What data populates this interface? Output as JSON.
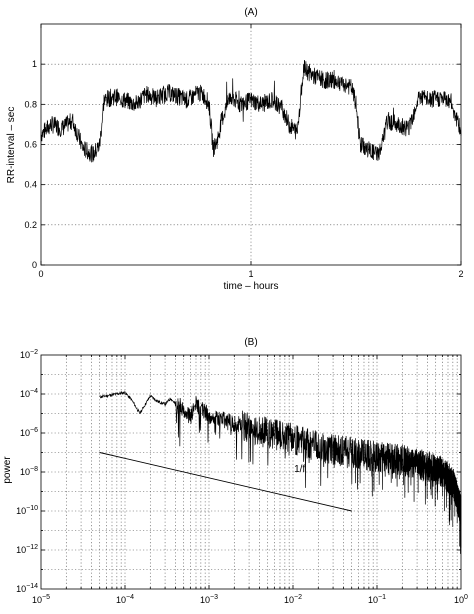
{
  "chart_data": [
    {
      "type": "line",
      "title": "(A)",
      "xlabel": "time – hours",
      "ylabel": "RR-interval – sec",
      "xlim": [
        0,
        2
      ],
      "ylim": [
        0,
        1.2
      ],
      "xticks": [
        0,
        1,
        2
      ],
      "xtick_labels": [
        "0",
        "1",
        "2"
      ],
      "yticks": [
        0,
        0.2,
        0.4,
        0.6,
        0.8,
        1
      ],
      "ytick_labels": [
        "0",
        "0.2",
        "0.4",
        "0.6",
        "0.8",
        "1"
      ],
      "grid": true,
      "series": [
        {
          "x": [
            0.0,
            0.05,
            0.1,
            0.15,
            0.2,
            0.25,
            0.28,
            0.3,
            0.35,
            0.4,
            0.45,
            0.5,
            0.55,
            0.6,
            0.65,
            0.7,
            0.75,
            0.78,
            0.8,
            0.82,
            0.84,
            0.86,
            0.9,
            0.95,
            1.0,
            1.05,
            1.1,
            1.15,
            1.18,
            1.22,
            1.25,
            1.3,
            1.35,
            1.4,
            1.45,
            1.48,
            1.5,
            1.52,
            1.55,
            1.6,
            1.62,
            1.65,
            1.7,
            1.75,
            1.8,
            1.85,
            1.9,
            1.95,
            2.0
          ],
          "values": [
            0.65,
            0.7,
            0.68,
            0.72,
            0.58,
            0.55,
            0.6,
            0.82,
            0.84,
            0.82,
            0.8,
            0.85,
            0.83,
            0.86,
            0.84,
            0.82,
            0.86,
            0.84,
            0.8,
            0.58,
            0.62,
            0.72,
            0.84,
            0.8,
            0.82,
            0.8,
            0.82,
            0.78,
            0.7,
            0.66,
            0.98,
            0.94,
            0.92,
            0.92,
            0.9,
            0.88,
            0.8,
            0.6,
            0.58,
            0.55,
            0.58,
            0.72,
            0.7,
            0.68,
            0.84,
            0.82,
            0.83,
            0.82,
            0.66
          ]
        }
      ]
    },
    {
      "type": "line",
      "title": "(B)",
      "xlabel": "",
      "ylabel": "power",
      "xscale": "log",
      "yscale": "log",
      "xlim": [
        1e-05,
        1
      ],
      "ylim": [
        1e-14,
        0.01
      ],
      "xticks": [
        1e-05,
        0.0001,
        0.001,
        0.01,
        0.1,
        1
      ],
      "xtick_labels": [
        {
          "base": "10",
          "exp": "−5"
        },
        {
          "base": "10",
          "exp": "−4"
        },
        {
          "base": "10",
          "exp": "−3"
        },
        {
          "base": "10",
          "exp": "−2"
        },
        {
          "base": "10",
          "exp": "−1"
        },
        {
          "base": "10",
          "exp": "0"
        }
      ],
      "yticks": [
        1e-14,
        1e-12,
        1e-10,
        1e-08,
        1e-06,
        0.0001,
        0.01
      ],
      "ytick_labels": [
        {
          "base": "10",
          "exp": "−14"
        },
        {
          "base": "10",
          "exp": "−12"
        },
        {
          "base": "10",
          "exp": "−10"
        },
        {
          "base": "10",
          "exp": "−8"
        },
        {
          "base": "10",
          "exp": "−6"
        },
        {
          "base": "10",
          "exp": "−4"
        },
        {
          "base": "10",
          "exp": "−2"
        }
      ],
      "grid": true,
      "annotations": [
        {
          "text": "1/f",
          "x": 0.012,
          "y": 1e-08
        }
      ],
      "series": [
        {
          "x": [
            5e-05,
            0.0001,
            0.00012,
            0.00015,
            0.0002,
            0.00025,
            0.0003,
            0.00035,
            0.0004,
            0.0005,
            0.0006,
            0.0007,
            0.001,
            0.002,
            0.005,
            0.01,
            0.02,
            0.05,
            0.1,
            0.2,
            0.4,
            0.6,
            0.8,
            1.0
          ],
          "values": [
            7e-05,
            0.00012,
            5e-05,
            1e-05,
            8e-05,
            4e-05,
            3e-05,
            6e-05,
            3e-05,
            2e-05,
            6e-06,
            3e-05,
            8e-06,
            3e-06,
            1e-06,
            5e-07,
            2e-07,
            1e-07,
            6e-08,
            4e-08,
            2e-08,
            1e-08,
            3e-09,
            1e-10
          ]
        },
        {
          "x": [
            5e-05,
            0.05
          ],
          "values": [
            1e-07,
            1e-10
          ]
        }
      ]
    }
  ]
}
